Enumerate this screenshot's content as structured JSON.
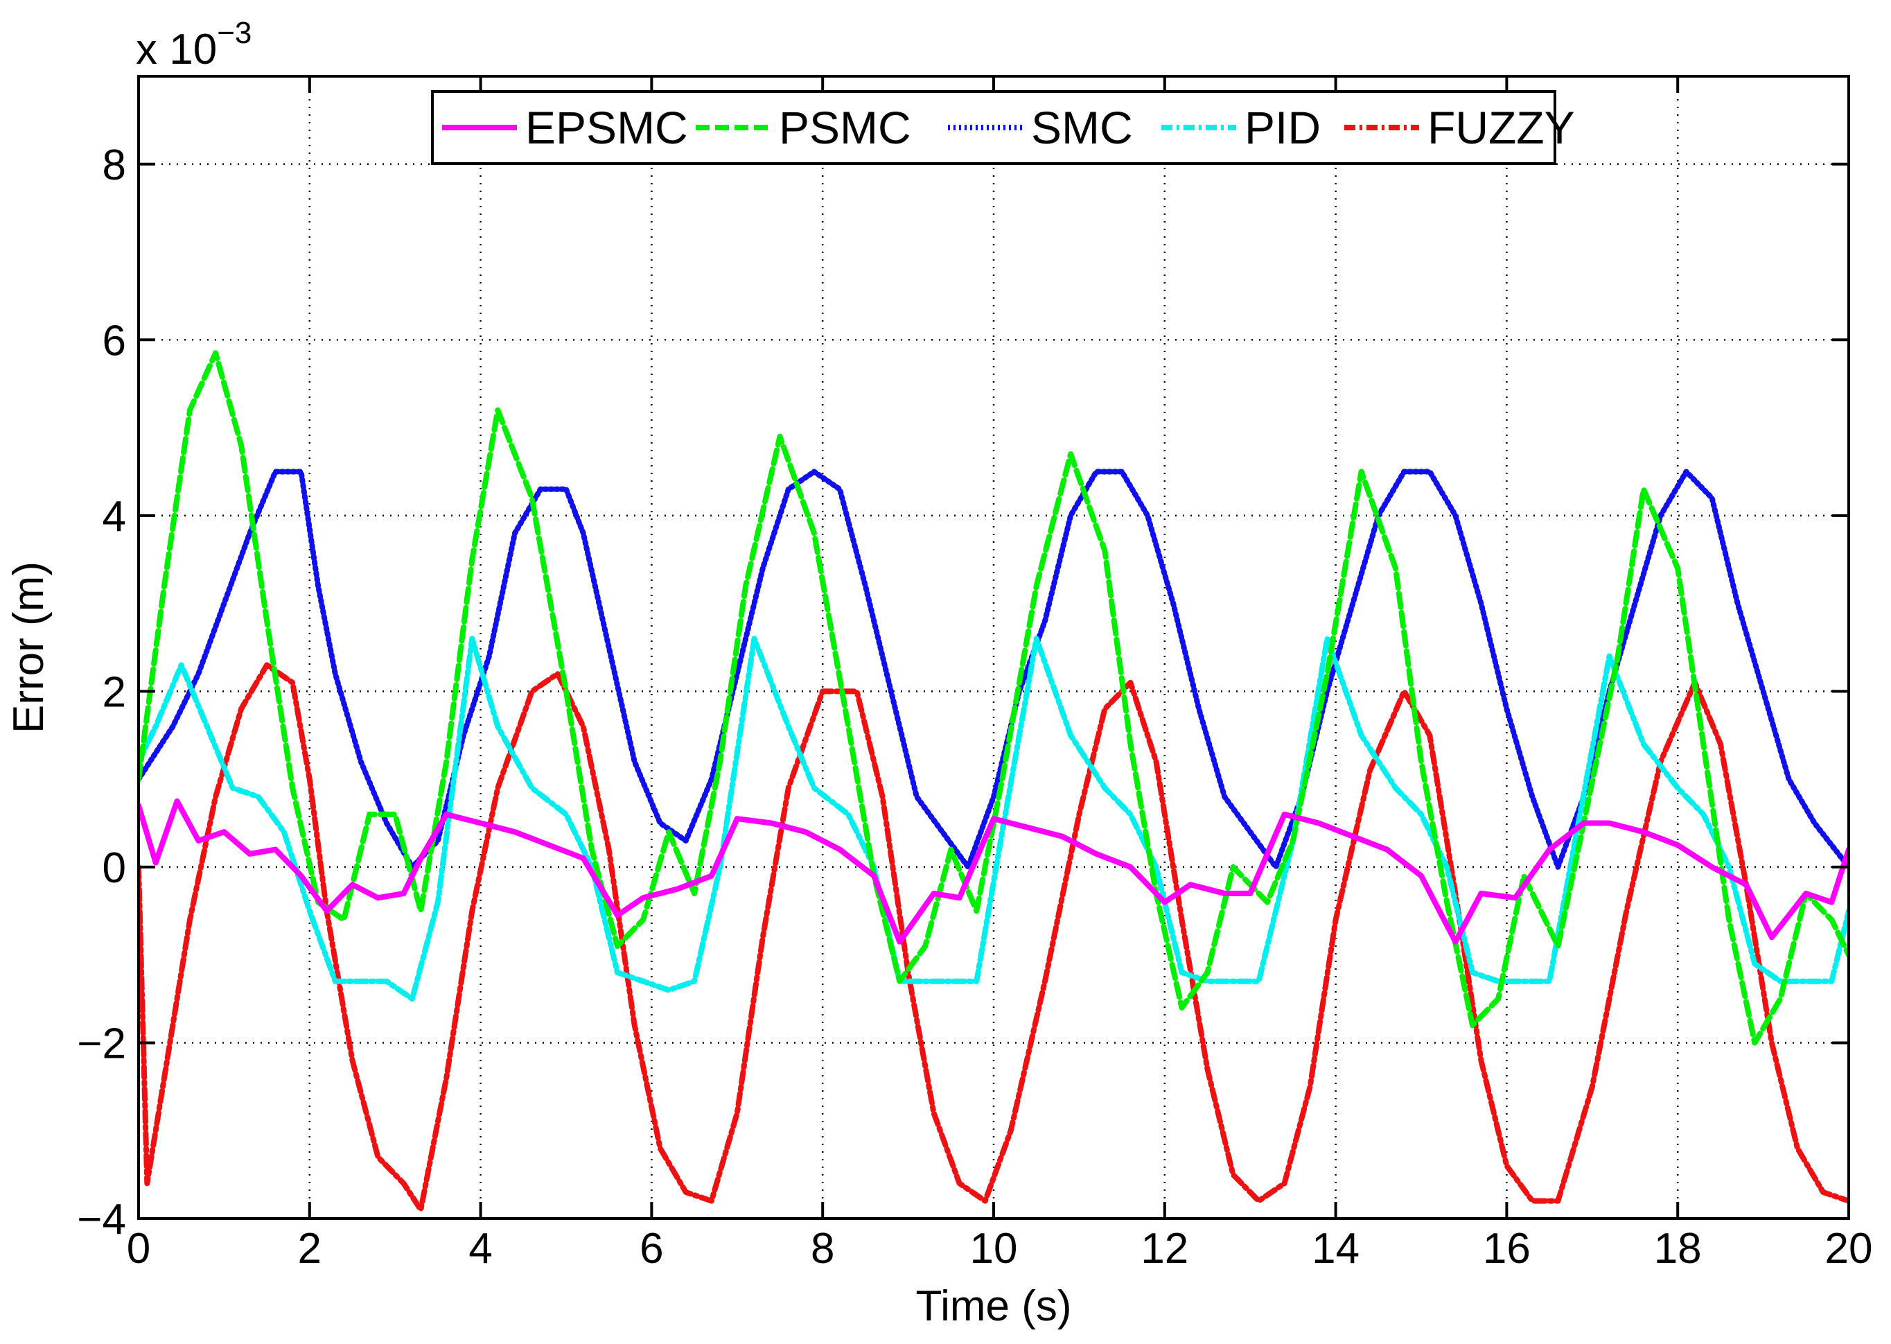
{
  "chart_data": {
    "type": "line",
    "title": "",
    "xlabel": "Time (s)",
    "ylabel": "Error (m)",
    "y_multiplier": "x 10",
    "y_multiplier_exponent": "−3",
    "xlim": [
      0,
      20
    ],
    "ylim": [
      -4,
      9
    ],
    "grid": true,
    "legend_position": "top-center",
    "x_ticks": [
      0,
      2,
      4,
      6,
      8,
      10,
      12,
      14,
      16,
      18,
      20
    ],
    "x_tick_labels": [
      "0",
      "2",
      "4",
      "6",
      "8",
      "10",
      "12",
      "14",
      "16",
      "18",
      "20"
    ],
    "y_ticks": [
      -4,
      -2,
      0,
      2,
      4,
      6,
      8
    ],
    "y_tick_labels": [
      "−4",
      "−2",
      "0",
      "2",
      "4",
      "6",
      "8"
    ],
    "series": [
      {
        "name": "EPSMC",
        "color": "#ff00ff",
        "style": "solid",
        "x": [
          0,
          0.2,
          0.45,
          0.7,
          1.0,
          1.3,
          1.6,
          1.9,
          2.2,
          2.5,
          2.8,
          3.1,
          3.3,
          3.6,
          4.0,
          4.4,
          4.8,
          5.2,
          5.6,
          5.9,
          6.3,
          6.7,
          7.0,
          7.4,
          7.8,
          8.2,
          8.6,
          8.9,
          9.3,
          9.6,
          10.0,
          10.4,
          10.8,
          11.2,
          11.6,
          12.0,
          12.3,
          12.7,
          13.0,
          13.4,
          13.8,
          14.2,
          14.6,
          15.0,
          15.4,
          15.7,
          16.1,
          16.5,
          16.9,
          17.2,
          17.6,
          18.0,
          18.4,
          18.8,
          19.1,
          19.5,
          19.8,
          20.0
        ],
        "values": [
          0.7,
          0.05,
          0.75,
          0.3,
          0.4,
          0.15,
          0.2,
          -0.1,
          -0.5,
          -0.2,
          -0.35,
          -0.3,
          0.1,
          0.6,
          0.5,
          0.4,
          0.25,
          0.1,
          -0.55,
          -0.35,
          -0.25,
          -0.1,
          0.55,
          0.5,
          0.4,
          0.2,
          -0.1,
          -0.85,
          -0.3,
          -0.35,
          0.55,
          0.45,
          0.35,
          0.15,
          0.0,
          -0.4,
          -0.2,
          -0.3,
          -0.3,
          0.6,
          0.5,
          0.35,
          0.2,
          -0.1,
          -0.85,
          -0.3,
          -0.35,
          0.2,
          0.5,
          0.5,
          0.4,
          0.25,
          0.0,
          -0.2,
          -0.8,
          -0.3,
          -0.4,
          0.2
        ]
      },
      {
        "name": "PSMC",
        "color": "#00ee00",
        "style": "dashed",
        "x": [
          0,
          0.3,
          0.6,
          0.9,
          1.2,
          1.5,
          1.8,
          2.1,
          2.4,
          2.7,
          3.0,
          3.3,
          3.6,
          3.9,
          4.2,
          4.6,
          5.0,
          5.3,
          5.6,
          5.9,
          6.2,
          6.5,
          6.8,
          7.1,
          7.5,
          7.9,
          8.3,
          8.6,
          8.9,
          9.2,
          9.5,
          9.8,
          10.1,
          10.5,
          10.9,
          11.3,
          11.6,
          11.9,
          12.2,
          12.5,
          12.8,
          13.2,
          13.5,
          13.9,
          14.3,
          14.7,
          15.0,
          15.3,
          15.6,
          15.9,
          16.2,
          16.6,
          16.9,
          17.3,
          17.6,
          18.0,
          18.3,
          18.6,
          18.9,
          19.2,
          19.5,
          19.8,
          20.0
        ],
        "values": [
          1.0,
          3.2,
          5.2,
          5.85,
          4.8,
          2.8,
          0.9,
          -0.4,
          -0.6,
          0.6,
          0.6,
          -0.5,
          1.2,
          3.5,
          5.2,
          4.2,
          2.0,
          0.2,
          -0.9,
          -0.6,
          0.4,
          -0.3,
          1.2,
          3.2,
          4.9,
          3.8,
          1.6,
          -0.1,
          -1.3,
          -0.9,
          0.2,
          -0.5,
          1.0,
          3.2,
          4.7,
          3.6,
          1.4,
          -0.3,
          -1.6,
          -1.2,
          0.0,
          -0.4,
          0.3,
          2.2,
          4.5,
          3.4,
          1.2,
          -0.4,
          -1.8,
          -1.5,
          -0.1,
          -0.9,
          0.5,
          2.4,
          4.3,
          3.4,
          1.4,
          -0.6,
          -2.0,
          -1.5,
          -0.3,
          -0.6,
          -1.0
        ]
      },
      {
        "name": "SMC",
        "color": "#1010ee",
        "style": "dotted",
        "x": [
          0,
          0.4,
          0.7,
          1.0,
          1.3,
          1.6,
          1.9,
          2.1,
          2.3,
          2.6,
          2.9,
          3.2,
          3.5,
          3.8,
          4.1,
          4.4,
          4.7,
          5.0,
          5.2,
          5.5,
          5.8,
          6.1,
          6.4,
          6.7,
          7.0,
          7.3,
          7.6,
          7.9,
          8.2,
          8.5,
          8.8,
          9.1,
          9.4,
          9.7,
          10.0,
          10.3,
          10.6,
          10.9,
          11.2,
          11.5,
          11.8,
          12.1,
          12.4,
          12.7,
          13.0,
          13.3,
          13.6,
          13.9,
          14.2,
          14.5,
          14.8,
          15.1,
          15.4,
          15.7,
          16.0,
          16.3,
          16.6,
          16.9,
          17.2,
          17.5,
          17.8,
          18.1,
          18.4,
          18.7,
          19.0,
          19.3,
          19.6,
          20.0
        ],
        "values": [
          1.0,
          1.6,
          2.2,
          3.0,
          3.8,
          4.5,
          4.5,
          3.2,
          2.2,
          1.2,
          0.5,
          0.0,
          0.3,
          1.5,
          2.4,
          3.8,
          4.3,
          4.3,
          3.8,
          2.5,
          1.2,
          0.5,
          0.3,
          1.0,
          2.2,
          3.4,
          4.3,
          4.5,
          4.3,
          3.2,
          2.0,
          0.8,
          0.4,
          0.0,
          0.8,
          2.0,
          2.8,
          4.0,
          4.5,
          4.5,
          4.0,
          3.0,
          1.8,
          0.8,
          0.4,
          0.0,
          0.8,
          2.0,
          3.0,
          4.0,
          4.5,
          4.5,
          4.0,
          3.0,
          1.8,
          0.8,
          0.0,
          0.8,
          2.0,
          3.0,
          4.0,
          4.5,
          4.2,
          3.0,
          2.0,
          1.0,
          0.5,
          0.0
        ]
      },
      {
        "name": "PID",
        "color": "#00eeee",
        "style": "dashdot",
        "x": [
          0,
          0.2,
          0.5,
          0.8,
          1.1,
          1.4,
          1.7,
          2.0,
          2.3,
          2.6,
          2.9,
          3.2,
          3.5,
          3.9,
          4.2,
          4.6,
          5.0,
          5.3,
          5.6,
          5.9,
          6.2,
          6.5,
          6.8,
          7.2,
          7.6,
          7.9,
          8.3,
          8.6,
          8.9,
          9.2,
          9.5,
          9.8,
          10.1,
          10.5,
          10.9,
          11.3,
          11.6,
          11.9,
          12.2,
          12.5,
          12.8,
          13.1,
          13.5,
          13.9,
          14.3,
          14.7,
          15.0,
          15.3,
          15.6,
          15.9,
          16.2,
          16.5,
          16.8,
          17.2,
          17.6,
          18.0,
          18.3,
          18.6,
          18.9,
          19.2,
          19.5,
          19.8,
          20.0
        ],
        "values": [
          1.2,
          1.6,
          2.3,
          1.6,
          0.9,
          0.8,
          0.4,
          -0.5,
          -1.3,
          -1.3,
          -1.3,
          -1.5,
          -0.4,
          2.6,
          1.6,
          0.9,
          0.6,
          0.0,
          -1.2,
          -1.3,
          -1.4,
          -1.3,
          0.0,
          2.6,
          1.6,
          0.9,
          0.6,
          0.0,
          -1.3,
          -1.3,
          -1.3,
          -1.3,
          0.4,
          2.6,
          1.5,
          0.9,
          0.6,
          0.0,
          -1.2,
          -1.3,
          -1.3,
          -1.3,
          0.3,
          2.6,
          1.5,
          0.9,
          0.6,
          0.0,
          -1.2,
          -1.3,
          -1.3,
          -1.3,
          0.3,
          2.4,
          1.4,
          0.9,
          0.6,
          0.0,
          -1.1,
          -1.3,
          -1.3,
          -1.3,
          -0.5
        ]
      },
      {
        "name": "FUZZY",
        "color": "#ee1111",
        "style": "dashdot",
        "x": [
          0,
          0.1,
          0.3,
          0.6,
          0.9,
          1.2,
          1.5,
          1.8,
          2.0,
          2.2,
          2.5,
          2.8,
          3.1,
          3.3,
          3.6,
          3.9,
          4.2,
          4.6,
          4.9,
          5.2,
          5.5,
          5.8,
          6.1,
          6.4,
          6.7,
          7.0,
          7.3,
          7.6,
          8.0,
          8.4,
          8.7,
          9.0,
          9.3,
          9.6,
          9.9,
          10.2,
          10.6,
          11.0,
          11.3,
          11.6,
          11.9,
          12.2,
          12.5,
          12.8,
          13.1,
          13.4,
          13.7,
          14.0,
          14.4,
          14.8,
          15.1,
          15.4,
          15.7,
          16.0,
          16.3,
          16.6,
          17.0,
          17.4,
          17.8,
          18.2,
          18.5,
          18.8,
          19.1,
          19.4,
          19.7,
          20.0
        ],
        "values": [
          0.0,
          -3.6,
          -2.4,
          -0.6,
          0.8,
          1.8,
          2.3,
          2.1,
          1.0,
          -0.5,
          -2.2,
          -3.3,
          -3.6,
          -3.9,
          -2.4,
          -0.5,
          0.9,
          2.0,
          2.2,
          1.6,
          0.2,
          -1.8,
          -3.2,
          -3.7,
          -3.8,
          -2.8,
          -0.8,
          0.9,
          2.0,
          2.0,
          0.8,
          -1.2,
          -2.8,
          -3.6,
          -3.8,
          -3.0,
          -1.3,
          0.6,
          1.8,
          2.1,
          1.2,
          -0.6,
          -2.3,
          -3.5,
          -3.8,
          -3.6,
          -2.5,
          -0.6,
          1.1,
          2.0,
          1.5,
          -0.3,
          -2.2,
          -3.4,
          -3.8,
          -3.8,
          -2.5,
          -0.5,
          1.2,
          2.1,
          1.4,
          -0.2,
          -2.0,
          -3.2,
          -3.7,
          -3.8
        ]
      }
    ]
  }
}
